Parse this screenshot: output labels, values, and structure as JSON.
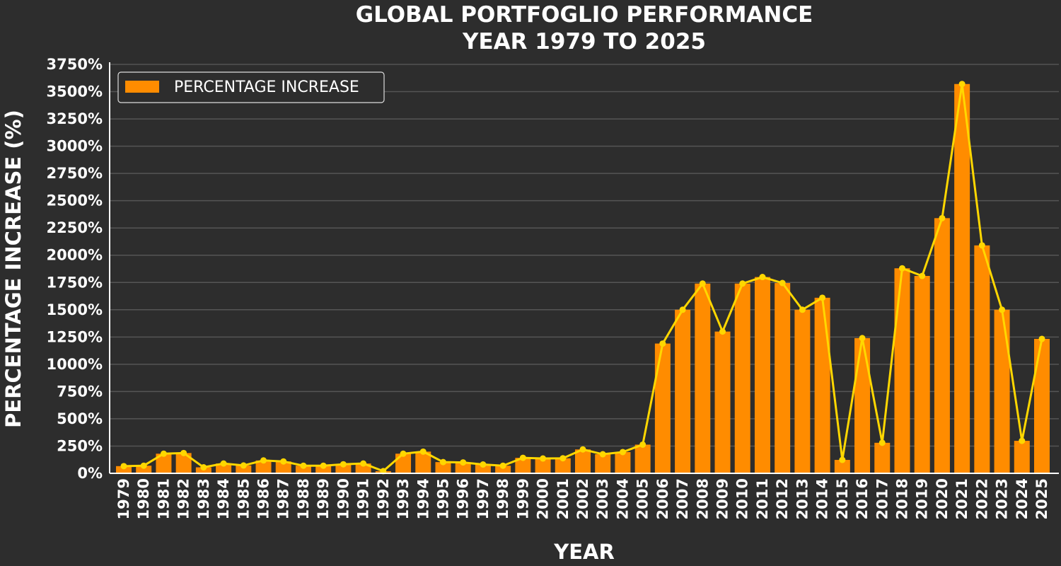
{
  "chart_data": {
    "type": "bar",
    "title": [
      "GLOBAL PORTFOGLIO PERFORMANCE",
      "YEAR 1979 TO 2025"
    ],
    "xlabel": "YEAR",
    "ylabel": "PERCENTAGE INCREASE (%)",
    "ylim": [
      0,
      3750
    ],
    "yticks": [
      "0%",
      "250%",
      "500%",
      "750%",
      "1000%",
      "1250%",
      "1500%",
      "1750%",
      "2000%",
      "2250%",
      "2500%",
      "2750%",
      "3000%",
      "3250%",
      "3500%",
      "3750%"
    ],
    "grid": true,
    "legend": {
      "position": "top-left",
      "label": "PERCENTAGE INCREASE"
    },
    "categories": [
      "1979",
      "1980",
      "1981",
      "1982",
      "1983",
      "1984",
      "1985",
      "1986",
      "1987",
      "1988",
      "1989",
      "1990",
      "1991",
      "1992",
      "1993",
      "1994",
      "1995",
      "1996",
      "1997",
      "1998",
      "1999",
      "2000",
      "2001",
      "2002",
      "2003",
      "2004",
      "2005",
      "2006",
      "2007",
      "2008",
      "2009",
      "2010",
      "2011",
      "2012",
      "2013",
      "2014",
      "2015",
      "2016",
      "2017",
      "2018",
      "2019",
      "2020",
      "2021",
      "2022",
      "2023",
      "2024",
      "2025"
    ],
    "series": [
      {
        "name": "PERCENTAGE INCREASE",
        "type": "bar+line",
        "values": [
          66,
          70,
          180,
          186,
          55,
          90,
          72,
          118,
          109,
          70,
          70,
          83,
          90,
          20,
          180,
          199,
          103,
          100,
          81,
          70,
          142,
          136,
          138,
          219,
          175,
          195,
          263,
          1190,
          1500,
          1740,
          1300,
          1740,
          1800,
          1745,
          1500,
          1610,
          123,
          1240,
          280,
          1880,
          1810,
          2340,
          3570,
          2090,
          1500,
          298,
          1233
        ]
      }
    ],
    "colors": {
      "background": "#2d2d2d",
      "bar": "#ff8c00",
      "line": "#ffd700",
      "grid": "#555555",
      "text": "#ffffff"
    }
  }
}
